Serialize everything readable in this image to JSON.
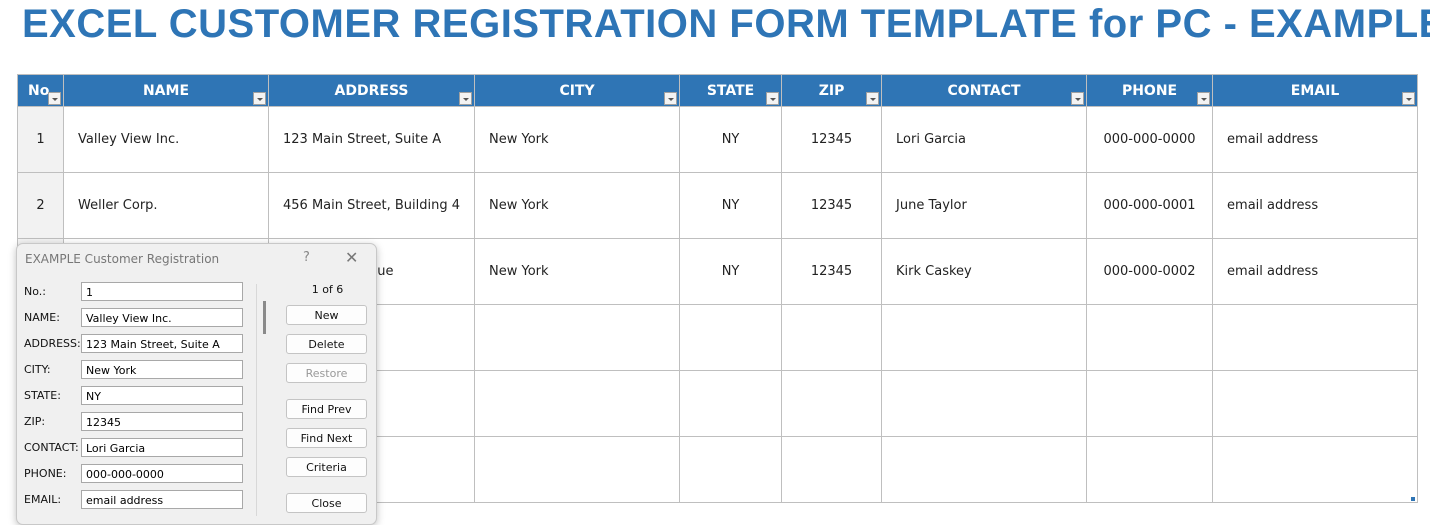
{
  "title": "EXCEL CUSTOMER REGISTRATION FORM TEMPLATE for PC - EXAMPLE",
  "colors": {
    "accent": "#2F75B5",
    "title": "#2E75B6"
  },
  "table": {
    "headers": [
      "No.",
      "NAME",
      "ADDRESS",
      "CITY",
      "STATE",
      "ZIP",
      "CONTACT",
      "PHONE",
      "EMAIL"
    ],
    "rows": [
      [
        "1",
        "Valley View Inc.",
        "123 Main Street, Suite A",
        "New York",
        "NY",
        "12345",
        "Lori Garcia",
        "000-000-0000",
        "email address"
      ],
      [
        "2",
        "Weller Corp.",
        "456 Main Street, Building 4",
        "New York",
        "NY",
        "12345",
        "June Taylor",
        "000-000-0001",
        "email address"
      ],
      [
        "",
        "",
        "nue",
        "New York",
        "NY",
        "12345",
        "Kirk Caskey",
        "000-000-0002",
        "email address"
      ],
      [
        "",
        "",
        "",
        "",
        "",
        "",
        "",
        "",
        ""
      ],
      [
        "",
        "",
        "",
        "",
        "",
        "",
        "",
        "",
        ""
      ],
      [
        "",
        "",
        "",
        "",
        "",
        "",
        "",
        "",
        ""
      ]
    ]
  },
  "dialog": {
    "title": "EXAMPLE Customer Registration",
    "help": "?",
    "close": "✕",
    "record": "1 of 6",
    "fields": [
      {
        "label": "No.:",
        "value": "1"
      },
      {
        "label": "NAME:",
        "value": "Valley View Inc."
      },
      {
        "label": "ADDRESS:",
        "value": "123 Main Street, Suite A"
      },
      {
        "label": "CITY:",
        "value": "New York"
      },
      {
        "label": "STATE:",
        "value": "NY"
      },
      {
        "label": "ZIP:",
        "value": "12345"
      },
      {
        "label": "CONTACT:",
        "value": "Lori Garcia"
      },
      {
        "label": "PHONE:",
        "value": "000-000-0000"
      },
      {
        "label": "EMAIL:",
        "value": "email address"
      }
    ],
    "buttons": {
      "new": "New",
      "delete": "Delete",
      "restore": "Restore",
      "find_prev": "Find Prev",
      "find_next": "Find Next",
      "criteria": "Criteria",
      "close": "Close"
    }
  }
}
